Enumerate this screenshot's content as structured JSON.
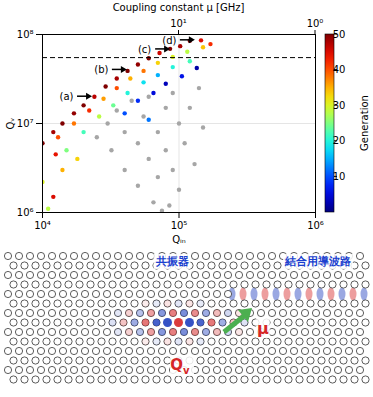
{
  "chart_data": {
    "type": "scatter",
    "xlabel": "Qᵢₙ",
    "ylabel": "Qᵥ",
    "log": true,
    "grid": true,
    "xlim": [
      10000,
      1000000
    ],
    "xticks": [
      {
        "value": 10000,
        "label": "10⁴"
      },
      {
        "value": 100000,
        "label": "10⁵"
      },
      {
        "value": 1000000,
        "label": "10⁶"
      }
    ],
    "ylim": [
      1000000,
      100000000
    ],
    "yticks": [
      {
        "value": 1000000,
        "label": "10⁶"
      },
      {
        "value": 10000000,
        "label": "10⁷"
      },
      {
        "value": 100000000,
        "label": "10⁸"
      }
    ],
    "x2label": "Coupling constant μ [GHz]",
    "x2lim": [
      100,
      1
    ],
    "x2ticks": [
      {
        "value": 10,
        "label": "10¹"
      },
      {
        "value": 1,
        "label": "10⁰"
      }
    ],
    "series": [
      {
        "color": "#a6a6a6",
        "x": [
          30000,
          35000,
          40000,
          45000,
          50000,
          55000,
          60000,
          60000,
          70000,
          70000,
          80000,
          80000,
          90000,
          90000,
          100000,
          100000,
          110000,
          120000,
          130000,
          40000,
          50000,
          65000,
          32000,
          150000,
          85000,
          25000,
          140000,
          75000
        ],
        "values": [
          10000000,
          14000000,
          8000000,
          18000000,
          6000000,
          12000000,
          4000000,
          20000000,
          8000000,
          2500000,
          15000000,
          5000000,
          3000000,
          22000000,
          10000000,
          1800000,
          6000000,
          15000000,
          3500000,
          3000000,
          2000000,
          1300000,
          5000000,
          9000000,
          1200000,
          7000000,
          25000000,
          1050000
        ]
      },
      {
        "x": [
          10000,
          12000,
          14000,
          17000,
          20000,
          24000,
          29000,
          35000,
          42000,
          50000,
          60000,
          72000,
          86000,
          102000,
          120000,
          145000,
          170000,
          13000,
          17000,
          22000,
          28000,
          35000,
          44000,
          55000,
          70000,
          90000,
          115000,
          150000,
          15000,
          20000,
          26000,
          33000,
          42000,
          55000,
          70000,
          90000,
          120000,
          40000,
          50000,
          65000,
          80000,
          105000,
          135000,
          60000,
          10000,
          12000,
          14000,
          11000,
          18000,
          12500
        ],
        "values": [
          6000000,
          8000000,
          10000000,
          13000000,
          16000000,
          20000000,
          26000000,
          32000000,
          39000000,
          46000000,
          54000000,
          62000000,
          69000000,
          74000000,
          85000000,
          86000000,
          78000000,
          7000000,
          10000000,
          14000000,
          19000000,
          25000000,
          32000000,
          39000000,
          48000000,
          56000000,
          64000000,
          72000000,
          5000000,
          8000000,
          12000000,
          16000000,
          22000000,
          29000000,
          35000000,
          43000000,
          50000000,
          13000000,
          18000000,
          22000000,
          28000000,
          34000000,
          42000000,
          11000000,
          2200000,
          1500000,
          3000000,
          1100000,
          4000000,
          4500000
        ],
        "generation": [
          50,
          48,
          50,
          49,
          50,
          47,
          50,
          48,
          50,
          49,
          50,
          46,
          50,
          48,
          50,
          45,
          42,
          40,
          38,
          42,
          36,
          40,
          35,
          38,
          33,
          30,
          28,
          34,
          25,
          22,
          28,
          24,
          20,
          18,
          15,
          20,
          22,
          10,
          8,
          5,
          3,
          6,
          2,
          12,
          30,
          45,
          35,
          28,
          33,
          44
        ]
      }
    ],
    "colorbar": {
      "label": "Generation",
      "range": [
        0,
        50
      ],
      "ticks": [
        10,
        20,
        30,
        40,
        50
      ],
      "colors": [
        "#00007f",
        "#0000ff",
        "#007fff",
        "#00ffff",
        "#7fff7f",
        "#ffff00",
        "#ff7f00",
        "#ff0000",
        "#7f0000"
      ]
    },
    "lines": [
      {
        "y": 55000000,
        "line_style": "dashed",
        "color": "#000000"
      }
    ],
    "annotations": [
      {
        "text": "(a)",
        "x": 15000,
        "y": 20000000
      },
      {
        "text": "(b)",
        "x": 27000,
        "y": 40000000
      },
      {
        "text": "(c)",
        "x": 56000,
        "y": 68000000
      },
      {
        "text": "(d)",
        "x": 85000,
        "y": 86000000
      }
    ]
  },
  "diagram": {
    "resonator_label": "共振器",
    "waveguide_label": "結合用導波路",
    "coupling_label": "μ",
    "q_label": "Q",
    "q_subscript": "v"
  }
}
